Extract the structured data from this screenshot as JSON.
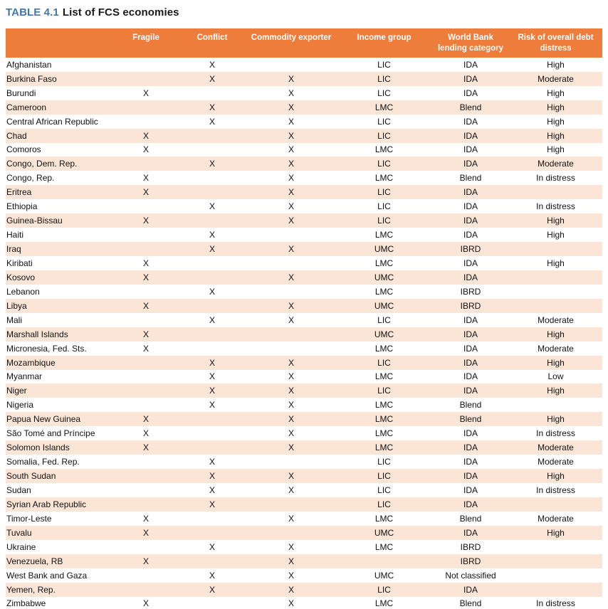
{
  "title": {
    "label": "TABLE 4.1",
    "caption": "List of FCS economies"
  },
  "colors": {
    "header_bg": "#ee7d3b",
    "row_stripe": "#fbe5d6",
    "title_accent": "#4575a7",
    "bottom_border": "#1a1a1a"
  },
  "table": {
    "columns": [
      "",
      "Fragile",
      "Conflict",
      "Commodity exporter",
      "Income group",
      "World Bank lending category",
      "Risk of overall debt distress"
    ],
    "rows": [
      [
        "Afghanistan",
        "",
        "X",
        "",
        "LIC",
        "IDA",
        "High"
      ],
      [
        "Burkina Faso",
        "",
        "X",
        "X",
        "LIC",
        "IDA",
        "Moderate"
      ],
      [
        "Burundi",
        "X",
        "",
        "X",
        "LIC",
        "IDA",
        "High"
      ],
      [
        "Cameroon",
        "",
        "X",
        "X",
        "LMC",
        "Blend",
        "High"
      ],
      [
        "Central African Republic",
        "",
        "X",
        "X",
        "LIC",
        "IDA",
        "High"
      ],
      [
        "Chad",
        "X",
        "",
        "X",
        "LIC",
        "IDA",
        "High"
      ],
      [
        "Comoros",
        "X",
        "",
        "X",
        "LMC",
        "IDA",
        "High"
      ],
      [
        "Congo, Dem. Rep.",
        "",
        "X",
        "X",
        "LIC",
        "IDA",
        "Moderate"
      ],
      [
        "Congo, Rep.",
        "X",
        "",
        "X",
        "LMC",
        "Blend",
        "In distress"
      ],
      [
        "Eritrea",
        "X",
        "",
        "X",
        "LIC",
        "IDA",
        ""
      ],
      [
        "Ethiopia",
        "",
        "X",
        "X",
        "LIC",
        "IDA",
        "In distress"
      ],
      [
        "Guinea-Bissau",
        "X",
        "",
        "X",
        "LIC",
        "IDA",
        "High"
      ],
      [
        "Haiti",
        "",
        "X",
        "",
        "LMC",
        "IDA",
        "High"
      ],
      [
        "Iraq",
        "",
        "X",
        "X",
        "UMC",
        "IBRD",
        ""
      ],
      [
        "Kiribati",
        "X",
        "",
        "",
        "LMC",
        "IDA",
        "High"
      ],
      [
        "Kosovo",
        "X",
        "",
        "X",
        "UMC",
        "IDA",
        ""
      ],
      [
        "Lebanon",
        "",
        "X",
        "",
        "LMC",
        "IBRD",
        ""
      ],
      [
        "Libya",
        "X",
        "",
        "X",
        "UMC",
        "IBRD",
        ""
      ],
      [
        "Mali",
        "",
        "X",
        "X",
        "LIC",
        "IDA",
        "Moderate"
      ],
      [
        "Marshall Islands",
        "X",
        "",
        "",
        "UMC",
        "IDA",
        "High"
      ],
      [
        "Micronesia, Fed. Sts.",
        "X",
        "",
        "",
        "LMC",
        "IDA",
        "Moderate"
      ],
      [
        "Mozambique",
        "",
        "X",
        "X",
        "LIC",
        "IDA",
        "High"
      ],
      [
        "Myanmar",
        "",
        "X",
        "X",
        "LMC",
        "IDA",
        "Low"
      ],
      [
        "Niger",
        "",
        "X",
        "X",
        "LIC",
        "IDA",
        "High"
      ],
      [
        "Nigeria",
        "",
        "X",
        "X",
        "LMC",
        "Blend",
        ""
      ],
      [
        "Papua New Guinea",
        "X",
        "",
        "X",
        "LMC",
        "Blend",
        "High"
      ],
      [
        "São Tomé and Príncipe",
        "X",
        "",
        "X",
        "LMC",
        "IDA",
        "In distress"
      ],
      [
        "Solomon Islands",
        "X",
        "",
        "X",
        "LMC",
        "IDA",
        "Moderate"
      ],
      [
        "Somalia, Fed. Rep.",
        "",
        "X",
        "",
        "LIC",
        "IDA",
        "Moderate"
      ],
      [
        "South Sudan",
        "",
        "X",
        "X",
        "LIC",
        "IDA",
        "High"
      ],
      [
        "Sudan",
        "",
        "X",
        "X",
        "LIC",
        "IDA",
        "In distress"
      ],
      [
        "Syrian Arab Republic",
        "",
        "X",
        "",
        "LIC",
        "IDA",
        ""
      ],
      [
        "Timor-Leste",
        "X",
        "",
        "X",
        "LMC",
        "Blend",
        "Moderate"
      ],
      [
        "Tuvalu",
        "X",
        "",
        "",
        "UMC",
        "IDA",
        "High"
      ],
      [
        "Ukraine",
        "",
        "X",
        "X",
        "LMC",
        "IBRD",
        ""
      ],
      [
        "Venezuela, RB",
        "X",
        "",
        "X",
        "",
        "IBRD",
        ""
      ],
      [
        "West Bank and Gaza",
        "",
        "X",
        "X",
        "UMC",
        "Not classified",
        ""
      ],
      [
        "Yemen, Rep.",
        "",
        "X",
        "X",
        "LIC",
        "IDA",
        ""
      ],
      [
        "Zimbabwe",
        "X",
        "",
        "X",
        "LMC",
        "Blend",
        "In distress"
      ]
    ]
  }
}
